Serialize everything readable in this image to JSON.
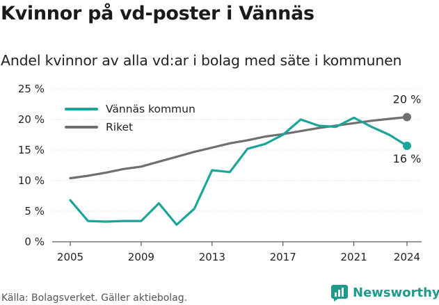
{
  "title": "Kvinnor på vd-poster i Vännäs",
  "subtitle": "Andel kvinnor av alla vd:ar i bolag med säte i kommunen",
  "source": "Källa: Bolagsverket. Gäller aktiebolag.",
  "brand": {
    "name": "Newsworthy",
    "icon": "newsworthy-logo-icon"
  },
  "colors": {
    "teal": "#1aa598",
    "gray": "#6e6e73",
    "grid": "#d9d9d9"
  },
  "chart_data": {
    "type": "line",
    "x": [
      2005,
      2006,
      2007,
      2008,
      2009,
      2010,
      2011,
      2012,
      2013,
      2014,
      2015,
      2016,
      2017,
      2018,
      2019,
      2020,
      2021,
      2022,
      2023,
      2024
    ],
    "series": [
      {
        "name": "Vännäs kommun",
        "color": "#1aa598",
        "values": [
          6.8,
          3.4,
          3.3,
          3.4,
          3.4,
          6.3,
          2.8,
          5.4,
          11.7,
          11.4,
          15.2,
          16.0,
          17.5,
          20.0,
          19.0,
          18.8,
          20.3,
          18.8,
          17.5,
          15.7
        ],
        "end_label": "16 %"
      },
      {
        "name": "Riket",
        "color": "#6e6e73",
        "values": [
          10.4,
          10.8,
          11.3,
          11.9,
          12.3,
          13.1,
          13.9,
          14.7,
          15.4,
          16.1,
          16.6,
          17.2,
          17.6,
          18.1,
          18.6,
          19.0,
          19.4,
          19.8,
          20.1,
          20.4
        ],
        "end_label": "20 %"
      }
    ],
    "xticks": [
      "2005",
      "2009",
      "2013",
      "2017",
      "2021",
      "2024"
    ],
    "yticks": [
      "0 %",
      "5 %",
      "10 %",
      "15 %",
      "20 %",
      "25 %"
    ],
    "ylim": [
      0,
      25
    ],
    "xlim": [
      2005,
      2024
    ],
    "grid": true,
    "legend_placement": "top-left"
  }
}
